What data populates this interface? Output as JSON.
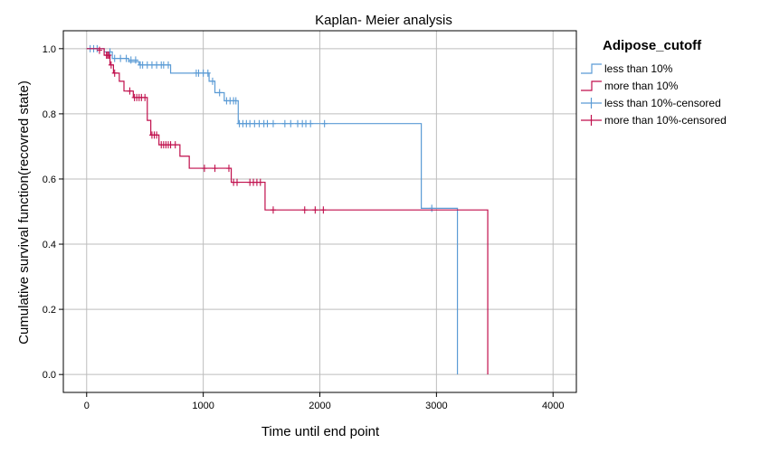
{
  "chart_data": {
    "type": "line",
    "title": "Kaplan- Meier analysis",
    "xlabel": "Time until end point",
    "ylabel": "Cumulative survival function(recovred state)",
    "xlim": [
      -200,
      4200
    ],
    "ylim": [
      -0.055,
      1.055
    ],
    "xticks": [
      0,
      1000,
      2000,
      3000,
      4000
    ],
    "yticks": [
      0.0,
      0.2,
      0.4,
      0.6,
      0.8,
      1.0
    ],
    "xtick_labels": [
      "0",
      "1000",
      "2000",
      "3000",
      "4000"
    ],
    "ytick_labels": [
      "0.0",
      "0.2",
      "0.4",
      "0.6",
      "0.8",
      "1.0"
    ],
    "grid": true,
    "legend": {
      "title": "Adipose_cutoff",
      "placement": "right",
      "entries": [
        "less than 10%",
        "more than 10%",
        "less than 10%-censored",
        "more than 10%-censored"
      ]
    },
    "series": [
      {
        "name": "less than 10%",
        "color": "#5b9bd5",
        "steps": [
          [
            0,
            1.0
          ],
          [
            150,
            0.99
          ],
          [
            220,
            0.97
          ],
          [
            360,
            0.96
          ],
          [
            450,
            0.95
          ],
          [
            720,
            0.925
          ],
          [
            1050,
            0.9
          ],
          [
            1100,
            0.865
          ],
          [
            1180,
            0.84
          ],
          [
            1300,
            0.77
          ],
          [
            2870,
            0.51
          ],
          [
            3180,
            0.0
          ]
        ],
        "censored": [
          [
            30,
            1.0
          ],
          [
            60,
            1.0
          ],
          [
            90,
            1.0
          ],
          [
            200,
            0.99
          ],
          [
            240,
            0.97
          ],
          [
            290,
            0.97
          ],
          [
            340,
            0.97
          ],
          [
            380,
            0.965
          ],
          [
            420,
            0.965
          ],
          [
            460,
            0.95
          ],
          [
            480,
            0.95
          ],
          [
            520,
            0.95
          ],
          [
            560,
            0.95
          ],
          [
            600,
            0.95
          ],
          [
            640,
            0.95
          ],
          [
            660,
            0.95
          ],
          [
            700,
            0.95
          ],
          [
            940,
            0.925
          ],
          [
            960,
            0.925
          ],
          [
            1000,
            0.925
          ],
          [
            1040,
            0.925
          ],
          [
            1080,
            0.9
          ],
          [
            1140,
            0.865
          ],
          [
            1200,
            0.84
          ],
          [
            1230,
            0.84
          ],
          [
            1260,
            0.84
          ],
          [
            1280,
            0.84
          ],
          [
            1310,
            0.77
          ],
          [
            1340,
            0.77
          ],
          [
            1370,
            0.77
          ],
          [
            1400,
            0.77
          ],
          [
            1440,
            0.77
          ],
          [
            1480,
            0.77
          ],
          [
            1520,
            0.77
          ],
          [
            1550,
            0.77
          ],
          [
            1600,
            0.77
          ],
          [
            1700,
            0.77
          ],
          [
            1750,
            0.77
          ],
          [
            1810,
            0.77
          ],
          [
            1850,
            0.77
          ],
          [
            1880,
            0.77
          ],
          [
            1920,
            0.77
          ],
          [
            2040,
            0.77
          ],
          [
            2960,
            0.51
          ]
        ]
      },
      {
        "name": "more than 10%",
        "color": "#c00f4c",
        "steps": [
          [
            0,
            1.0
          ],
          [
            150,
            0.98
          ],
          [
            200,
            0.95
          ],
          [
            230,
            0.925
          ],
          [
            280,
            0.9
          ],
          [
            320,
            0.87
          ],
          [
            400,
            0.85
          ],
          [
            520,
            0.78
          ],
          [
            550,
            0.735
          ],
          [
            620,
            0.705
          ],
          [
            800,
            0.67
          ],
          [
            880,
            0.633
          ],
          [
            1240,
            0.59
          ],
          [
            1530,
            0.505
          ],
          [
            3440,
            0.0
          ]
        ],
        "censored": [
          [
            110,
            0.995
          ],
          [
            170,
            0.98
          ],
          [
            180,
            0.98
          ],
          [
            190,
            0.98
          ],
          [
            210,
            0.95
          ],
          [
            240,
            0.925
          ],
          [
            370,
            0.87
          ],
          [
            410,
            0.85
          ],
          [
            430,
            0.85
          ],
          [
            450,
            0.85
          ],
          [
            470,
            0.85
          ],
          [
            500,
            0.85
          ],
          [
            560,
            0.735
          ],
          [
            580,
            0.735
          ],
          [
            600,
            0.735
          ],
          [
            640,
            0.705
          ],
          [
            660,
            0.705
          ],
          [
            680,
            0.705
          ],
          [
            700,
            0.705
          ],
          [
            720,
            0.705
          ],
          [
            760,
            0.705
          ],
          [
            1010,
            0.633
          ],
          [
            1100,
            0.633
          ],
          [
            1220,
            0.633
          ],
          [
            1260,
            0.59
          ],
          [
            1290,
            0.59
          ],
          [
            1400,
            0.59
          ],
          [
            1430,
            0.59
          ],
          [
            1460,
            0.59
          ],
          [
            1490,
            0.59
          ],
          [
            1600,
            0.505
          ],
          [
            1870,
            0.505
          ],
          [
            1960,
            0.505
          ],
          [
            2030,
            0.505
          ]
        ]
      }
    ]
  }
}
